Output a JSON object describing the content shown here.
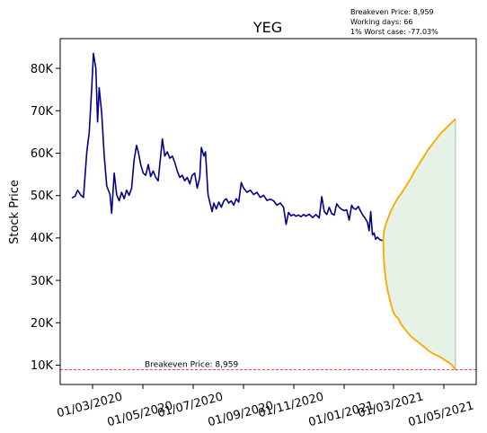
{
  "chart_data": {
    "type": "line",
    "title": "YEG",
    "xlabel": "",
    "ylabel": "Stock Price",
    "annotations": [
      "Breakeven Price: 8,959",
      "Working days: 66",
      "1% Worst case: -77.03%"
    ],
    "breakeven_label": "Breakeven Price: 8,959",
    "breakeven_value": 8959,
    "x_ticks": [
      "01/03/2020",
      "01/05/2020",
      "01/07/2020",
      "01/09/2020",
      "01/11/2020",
      "01/01/2021",
      "01/03/2021",
      "01/05/2021"
    ],
    "y_ticks": [
      "10K",
      "20K",
      "30K",
      "40K",
      "50K",
      "60K",
      "70K",
      "80K"
    ],
    "xlim": [
      "2020-01-10",
      "2021-05-25"
    ],
    "ylim": [
      5500,
      86500
    ],
    "grid": false,
    "colors": {
      "historical": "#00008b",
      "band": "#ffa500",
      "fill": "#d5ead3",
      "breakeven": "#ff0000"
    },
    "series": [
      {
        "values": [
          [
            "2020-01-24",
            49200
          ],
          [
            "2020-01-28",
            49600
          ],
          [
            "2020-01-31",
            51000
          ],
          [
            "2020-02-04",
            49800
          ],
          [
            "2020-02-07",
            49300
          ],
          [
            "2020-02-11",
            60000
          ],
          [
            "2020-02-14",
            64500
          ],
          [
            "2020-02-17",
            75000
          ],
          [
            "2020-02-19",
            83000
          ],
          [
            "2020-02-22",
            79500
          ],
          [
            "2020-02-24",
            67000
          ],
          [
            "2020-02-26",
            75000
          ],
          [
            "2020-02-29",
            69000
          ],
          [
            "2020-03-03",
            59000
          ],
          [
            "2020-03-06",
            52000
          ],
          [
            "2020-03-10",
            50000
          ],
          [
            "2020-03-12",
            45600
          ],
          [
            "2020-03-15",
            55000
          ],
          [
            "2020-03-18",
            50000
          ],
          [
            "2020-03-21",
            48500
          ],
          [
            "2020-03-24",
            50500
          ],
          [
            "2020-03-27",
            49000
          ],
          [
            "2020-03-30",
            51000
          ],
          [
            "2020-04-02",
            49800
          ],
          [
            "2020-04-05",
            51500
          ],
          [
            "2020-04-08",
            58000
          ],
          [
            "2020-04-11",
            61500
          ],
          [
            "2020-04-13",
            60000
          ],
          [
            "2020-04-16",
            57000
          ],
          [
            "2020-04-19",
            55000
          ],
          [
            "2020-04-22",
            54500
          ],
          [
            "2020-04-25",
            57000
          ],
          [
            "2020-04-28",
            54200
          ],
          [
            "2020-05-01",
            55500
          ],
          [
            "2020-05-04",
            54000
          ],
          [
            "2020-05-07",
            53200
          ],
          [
            "2020-05-10",
            59000
          ],
          [
            "2020-05-12",
            63000
          ],
          [
            "2020-05-15",
            59000
          ],
          [
            "2020-05-18",
            60000
          ],
          [
            "2020-05-21",
            58500
          ],
          [
            "2020-05-24",
            59000
          ],
          [
            "2020-05-27",
            57500
          ],
          [
            "2020-05-30",
            55500
          ],
          [
            "2020-06-02",
            54000
          ],
          [
            "2020-06-05",
            54500
          ],
          [
            "2020-06-08",
            53200
          ],
          [
            "2020-06-11",
            54000
          ],
          [
            "2020-06-14",
            52500
          ],
          [
            "2020-06-17",
            54500
          ],
          [
            "2020-06-20",
            55000
          ],
          [
            "2020-06-23",
            51500
          ],
          [
            "2020-06-26",
            54000
          ],
          [
            "2020-06-28",
            61000
          ],
          [
            "2020-07-01",
            59000
          ],
          [
            "2020-07-03",
            60000
          ],
          [
            "2020-07-06",
            50000
          ],
          [
            "2020-07-09",
            47500
          ],
          [
            "2020-07-11",
            46000
          ],
          [
            "2020-07-13",
            48000
          ],
          [
            "2020-07-16",
            46600
          ],
          [
            "2020-07-19",
            48200
          ],
          [
            "2020-07-22",
            47000
          ],
          [
            "2020-07-25",
            48500
          ],
          [
            "2020-07-28",
            49000
          ],
          [
            "2020-07-31",
            48000
          ],
          [
            "2020-08-03",
            48500
          ],
          [
            "2020-08-06",
            47500
          ],
          [
            "2020-08-09",
            49000
          ],
          [
            "2020-08-12",
            48200
          ],
          [
            "2020-08-15",
            52800
          ],
          [
            "2020-08-18",
            51500
          ],
          [
            "2020-08-22",
            50500
          ],
          [
            "2020-08-26",
            51000
          ],
          [
            "2020-08-30",
            50000
          ],
          [
            "2020-09-03",
            50500
          ],
          [
            "2020-09-07",
            49300
          ],
          [
            "2020-09-11",
            49800
          ],
          [
            "2020-09-15",
            48600
          ],
          [
            "2020-09-19",
            48900
          ],
          [
            "2020-09-23",
            48500
          ],
          [
            "2020-09-27",
            47500
          ],
          [
            "2020-10-01",
            48000
          ],
          [
            "2020-10-05",
            47000
          ],
          [
            "2020-10-08",
            43000
          ],
          [
            "2020-10-11",
            45800
          ],
          [
            "2020-10-14",
            45000
          ],
          [
            "2020-10-17",
            45300
          ],
          [
            "2020-10-20",
            44900
          ],
          [
            "2020-10-23",
            45200
          ],
          [
            "2020-10-26",
            44800
          ],
          [
            "2020-10-29",
            45300
          ],
          [
            "2020-11-01",
            44900
          ],
          [
            "2020-11-05",
            45400
          ],
          [
            "2020-11-09",
            44600
          ],
          [
            "2020-11-13",
            45300
          ],
          [
            "2020-11-17",
            44500
          ],
          [
            "2020-11-20",
            49500
          ],
          [
            "2020-11-23",
            46000
          ],
          [
            "2020-11-26",
            45300
          ],
          [
            "2020-11-29",
            47000
          ],
          [
            "2020-12-02",
            45500
          ],
          [
            "2020-12-05",
            45200
          ],
          [
            "2020-12-08",
            47800
          ],
          [
            "2020-12-11",
            47000
          ],
          [
            "2020-12-14",
            46500
          ],
          [
            "2020-12-17",
            46200
          ],
          [
            "2020-12-20",
            46400
          ],
          [
            "2020-12-23",
            44000
          ],
          [
            "2020-12-26",
            47500
          ],
          [
            "2020-12-28",
            46800
          ],
          [
            "2020-12-31",
            46500
          ],
          [
            "2021-01-03",
            47200
          ],
          [
            "2021-01-06",
            46000
          ],
          [
            "2021-01-09",
            45000
          ],
          [
            "2021-01-11",
            44500
          ],
          [
            "2021-01-14",
            43500
          ],
          [
            "2021-01-16",
            41500
          ],
          [
            "2021-01-18",
            46000
          ],
          [
            "2021-01-20",
            40500
          ],
          [
            "2021-01-22",
            41000
          ],
          [
            "2021-01-24",
            39500
          ],
          [
            "2021-01-26",
            40000
          ],
          [
            "2021-01-29",
            39400
          ],
          [
            "2021-02-01",
            39200
          ]
        ]
      },
      {
        "values": [
          [
            "2021-02-02",
            39200
          ],
          [
            "2021-02-03",
            41500
          ],
          [
            "2021-02-05",
            43000
          ],
          [
            "2021-02-08",
            44500
          ],
          [
            "2021-02-11",
            46000
          ],
          [
            "2021-02-14",
            47200
          ],
          [
            "2021-02-17",
            48300
          ],
          [
            "2021-02-20",
            49300
          ],
          [
            "2021-02-24",
            50300
          ],
          [
            "2021-02-28",
            51500
          ],
          [
            "2021-03-04",
            52800
          ],
          [
            "2021-03-08",
            54000
          ],
          [
            "2021-03-12",
            55500
          ],
          [
            "2021-03-16",
            56700
          ],
          [
            "2021-03-20",
            58000
          ],
          [
            "2021-03-24",
            59200
          ],
          [
            "2021-03-28",
            60500
          ],
          [
            "2021-04-01",
            61500
          ],
          [
            "2021-04-05",
            62500
          ],
          [
            "2021-04-09",
            63500
          ],
          [
            "2021-04-13",
            64500
          ],
          [
            "2021-04-17",
            65200
          ],
          [
            "2021-04-21",
            66000
          ],
          [
            "2021-04-25",
            66700
          ],
          [
            "2021-04-28",
            67300
          ],
          [
            "2021-04-30",
            67700
          ]
        ]
      },
      {
        "values": [
          [
            "2021-02-02",
            39200
          ],
          [
            "2021-02-03",
            34000
          ],
          [
            "2021-02-05",
            30000
          ],
          [
            "2021-02-08",
            27000
          ],
          [
            "2021-02-11",
            24500
          ],
          [
            "2021-02-14",
            22500
          ],
          [
            "2021-02-17",
            21500
          ],
          [
            "2021-02-20",
            21000
          ],
          [
            "2021-02-24",
            19500
          ],
          [
            "2021-02-28",
            18500
          ],
          [
            "2021-03-04",
            17500
          ],
          [
            "2021-03-08",
            16700
          ],
          [
            "2021-03-12",
            16000
          ],
          [
            "2021-03-16",
            15500
          ],
          [
            "2021-03-20",
            14800
          ],
          [
            "2021-03-24",
            14200
          ],
          [
            "2021-03-28",
            13500
          ],
          [
            "2021-04-01",
            13000
          ],
          [
            "2021-04-05",
            12500
          ],
          [
            "2021-04-09",
            12200
          ],
          [
            "2021-04-13",
            11800
          ],
          [
            "2021-04-17",
            11200
          ],
          [
            "2021-04-21",
            10800
          ],
          [
            "2021-04-25",
            10200
          ],
          [
            "2021-04-28",
            9500
          ],
          [
            "2021-04-30",
            8959
          ]
        ]
      }
    ]
  }
}
